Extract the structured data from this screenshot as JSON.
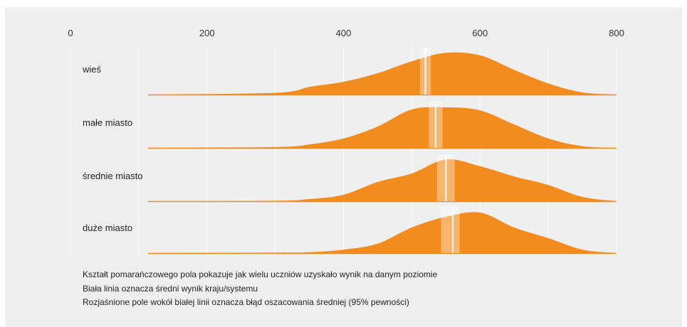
{
  "colors": {
    "background": "#efeff0",
    "distribution_fill": "#f28c1e",
    "mean_line": "#ffffff",
    "grid": "#ffffff",
    "baseline": "#f28c1e"
  },
  "chart_data": {
    "type": "area",
    "subtype": "ridgeline-density",
    "title": "",
    "xlabel": "",
    "ylabel": "",
    "xlim": [
      0,
      800
    ],
    "x_ticks": [
      0,
      200,
      400,
      600,
      800
    ],
    "grid": true,
    "grid_every": 100,
    "density_x": [
      100,
      300,
      350,
      400,
      450,
      500,
      550,
      600,
      650,
      700,
      750,
      800
    ],
    "series": [
      {
        "name": "wieś",
        "mean": 520,
        "ci": [
          512,
          528
        ],
        "density": [
          0.0,
          0.04,
          0.18,
          0.3,
          0.5,
          0.78,
          0.98,
          0.92,
          0.58,
          0.26,
          0.05,
          0.0
        ]
      },
      {
        "name": "małe miasto",
        "mean": 535,
        "ci": [
          525,
          545
        ],
        "density": [
          0.0,
          0.02,
          0.08,
          0.22,
          0.5,
          0.9,
          0.95,
          0.88,
          0.55,
          0.22,
          0.04,
          0.0
        ]
      },
      {
        "name": "średnie miasto",
        "mean": 550,
        "ci": [
          537,
          563
        ],
        "density": [
          0.0,
          0.01,
          0.05,
          0.15,
          0.45,
          0.65,
          0.98,
          0.82,
          0.58,
          0.38,
          0.1,
          0.0
        ]
      },
      {
        "name": "duże miasto",
        "mean": 560,
        "ci": [
          543,
          570
        ],
        "density": [
          0.0,
          0.01,
          0.02,
          0.08,
          0.22,
          0.6,
          0.85,
          0.95,
          0.6,
          0.35,
          0.08,
          0.0
        ]
      }
    ]
  },
  "notes": [
    "Kształt pomarańczowego pola pokazuje jak wielu uczniów uzyskało wynik na danym poziomie",
    "Biała linia oznacza średni wynik kraju/systemu",
    "Rozjaśnione pole wokół białej linii oznacza błąd oszacowania średniej (95% pewności)"
  ]
}
